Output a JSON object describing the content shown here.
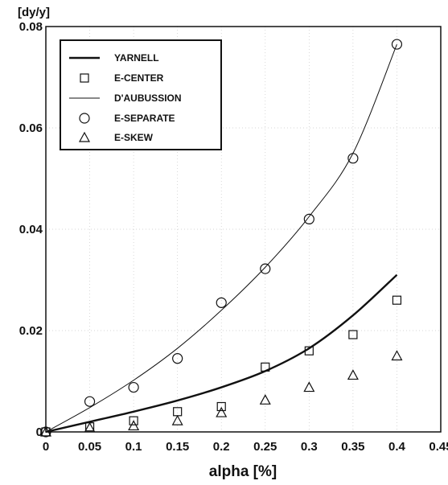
{
  "chart_data": {
    "type": "scatter",
    "title": "",
    "ylabel": "[dy/y]",
    "xlabel": "alpha [%]",
    "xlim": [
      0,
      0.45
    ],
    "ylim": [
      0,
      0.08
    ],
    "x_ticks": [
      "0",
      "0.05",
      "0.1",
      "0.15",
      "0.2",
      "0.25",
      "0.3",
      "0.35",
      "0.4",
      "0.45"
    ],
    "y_ticks": [
      "0",
      "0.02",
      "0.04",
      "0.06",
      "0.08"
    ],
    "grid": true,
    "legend_position": "top-left",
    "series": [
      {
        "name": "YARNELL",
        "kind": "line",
        "style": "thick",
        "x": [
          0,
          0.05,
          0.1,
          0.15,
          0.2,
          0.25,
          0.3,
          0.35,
          0.4
        ],
        "y": [
          0,
          0.002,
          0.004,
          0.0062,
          0.0088,
          0.012,
          0.0165,
          0.023,
          0.031
        ]
      },
      {
        "name": "E-CENTER",
        "kind": "marker",
        "marker": "square",
        "x": [
          0,
          0.05,
          0.1,
          0.15,
          0.2,
          0.25,
          0.3,
          0.35,
          0.4
        ],
        "y": [
          0,
          0.001,
          0.0022,
          0.004,
          0.005,
          0.0128,
          0.016,
          0.0192,
          0.026
        ]
      },
      {
        "name": "D'AUBUSSION",
        "kind": "line",
        "style": "thin",
        "x": [
          0,
          0.05,
          0.1,
          0.15,
          0.2,
          0.25,
          0.3,
          0.35,
          0.4
        ],
        "y": [
          0,
          0.0048,
          0.0102,
          0.0165,
          0.024,
          0.0325,
          0.0425,
          0.055,
          0.0765
        ]
      },
      {
        "name": "E-SEPARATE",
        "kind": "marker",
        "marker": "circle",
        "x": [
          0,
          0.05,
          0.1,
          0.15,
          0.2,
          0.25,
          0.3,
          0.35,
          0.4
        ],
        "y": [
          0,
          0.006,
          0.0088,
          0.0145,
          0.0255,
          0.0322,
          0.042,
          0.054,
          0.0765
        ]
      },
      {
        "name": "E-SKEW",
        "kind": "marker",
        "marker": "triangle",
        "x": [
          0,
          0.05,
          0.1,
          0.15,
          0.2,
          0.25,
          0.3,
          0.35,
          0.4
        ],
        "y": [
          0,
          0.0008,
          0.0012,
          0.0022,
          0.0038,
          0.0063,
          0.0088,
          0.0112,
          0.015
        ]
      }
    ]
  }
}
